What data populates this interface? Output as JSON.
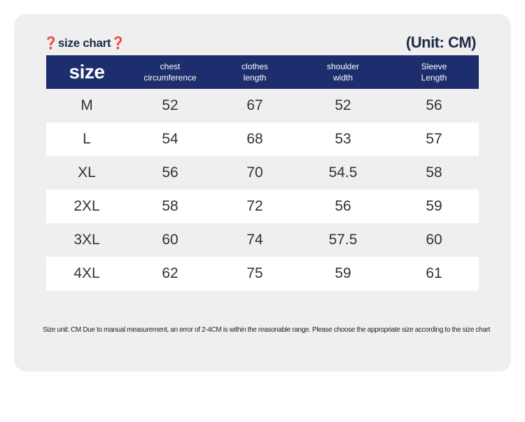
{
  "title": "❓size chart❓",
  "unit": "(Unit: CM)",
  "headers": {
    "size": "size",
    "chest": [
      "chest",
      "circumference"
    ],
    "clothes": [
      "clothes",
      "length"
    ],
    "shoulder": [
      "shoulder",
      "width"
    ],
    "sleeve": [
      "Sleeve",
      "Length"
    ]
  },
  "rows": [
    [
      "M",
      "52",
      "67",
      "52",
      "56"
    ],
    [
      "L",
      "54",
      "68",
      "53",
      "57"
    ],
    [
      "XL",
      "56",
      "70",
      "54.5",
      "58"
    ],
    [
      "2XL",
      "58",
      "72",
      "56",
      "59"
    ],
    [
      "3XL",
      "60",
      "74",
      "57.5",
      "60"
    ],
    [
      "4XL",
      "62",
      "75",
      "59",
      "61"
    ]
  ],
  "footnote": "Size unit: CM Due to manual measurement, an error of 2-4CM is within the reasonable range. Please choose the appropriate size according to the size chart",
  "colors": {
    "header_bg": "#1c2e6e",
    "title_text": "#1e2a48",
    "card_bg": "#efefef"
  }
}
